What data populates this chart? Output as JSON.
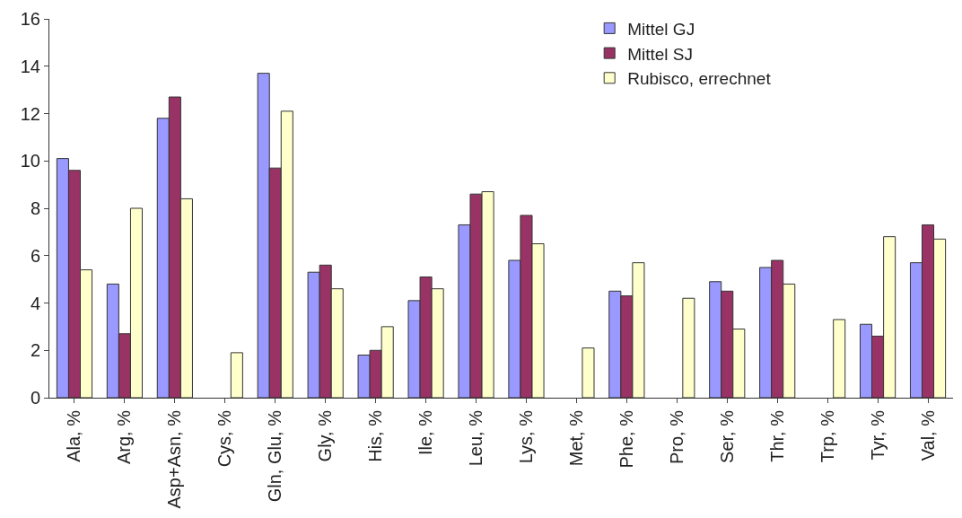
{
  "chart_data": {
    "type": "bar",
    "categories": [
      "Ala, %",
      "Arg, %",
      "Asp+Asn, %",
      "Cys, %",
      "Gln, Glu, %",
      "Gly, %",
      "His, %",
      "Ile, %",
      "Leu, %",
      "Lys, %",
      "Met, %",
      "Phe, %",
      "Pro, %",
      "Ser, %",
      "Thr, %",
      "Trp, %",
      "Tyr, %",
      "Val, %"
    ],
    "series": [
      {
        "name": "Mittel GJ",
        "color": "#9999ff",
        "values": [
          10.1,
          4.8,
          11.8,
          null,
          13.7,
          5.3,
          1.8,
          4.1,
          7.3,
          5.8,
          null,
          4.5,
          null,
          4.9,
          5.5,
          null,
          3.1,
          5.7
        ]
      },
      {
        "name": "Mittel SJ",
        "color": "#993366",
        "values": [
          9.6,
          2.7,
          12.7,
          null,
          9.7,
          5.6,
          2.0,
          5.1,
          8.6,
          7.7,
          null,
          4.3,
          null,
          4.5,
          5.8,
          null,
          2.6,
          7.3
        ]
      },
      {
        "name": "Rubisco, errechnet",
        "color": "#ffffcc",
        "values": [
          5.4,
          8.0,
          8.4,
          1.9,
          12.1,
          4.6,
          3.0,
          4.6,
          8.7,
          6.5,
          2.1,
          5.7,
          4.2,
          2.9,
          4.8,
          3.3,
          6.8,
          6.7
        ]
      }
    ],
    "ylim": [
      0,
      16
    ],
    "yticks": [
      0,
      2,
      4,
      6,
      8,
      10,
      12,
      14,
      16
    ],
    "legend": "top right"
  }
}
